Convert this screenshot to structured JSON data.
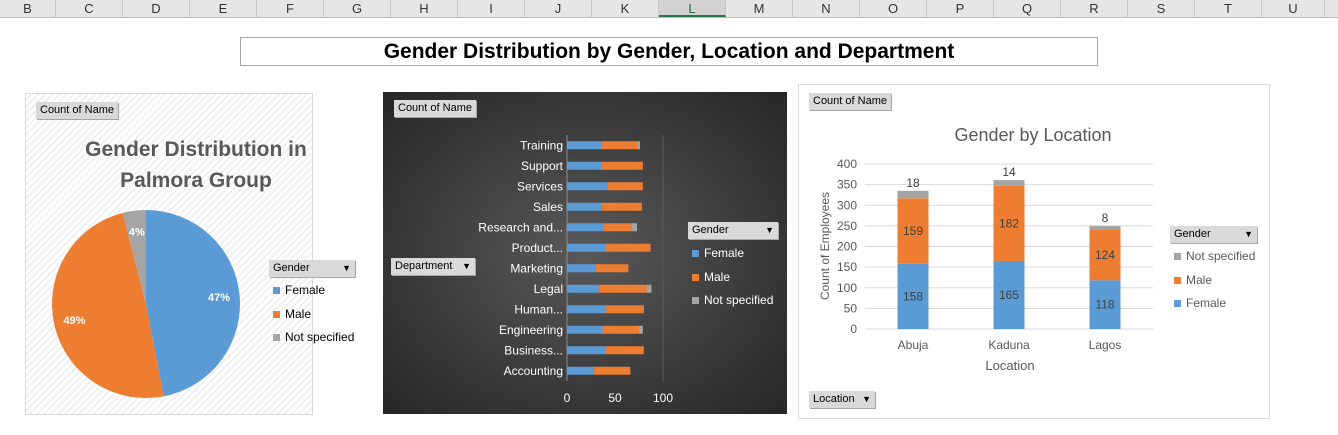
{
  "columns": [
    {
      "label": "B",
      "w": 56
    },
    {
      "label": "C",
      "w": 67
    },
    {
      "label": "D",
      "w": 67
    },
    {
      "label": "E",
      "w": 67
    },
    {
      "label": "F",
      "w": 67
    },
    {
      "label": "G",
      "w": 67
    },
    {
      "label": "H",
      "w": 67
    },
    {
      "label": "I",
      "w": 67
    },
    {
      "label": "J",
      "w": 67
    },
    {
      "label": "K",
      "w": 67
    },
    {
      "label": "L",
      "w": 67,
      "selected": true
    },
    {
      "label": "M",
      "w": 67
    },
    {
      "label": "N",
      "w": 67
    },
    {
      "label": "O",
      "w": 67
    },
    {
      "label": "P",
      "w": 67
    },
    {
      "label": "Q",
      "w": 67
    },
    {
      "label": "R",
      "w": 67
    },
    {
      "label": "S",
      "w": 67
    },
    {
      "label": "T",
      "w": 67
    },
    {
      "label": "U",
      "w": 63
    }
  ],
  "page_title": "Gender Distribution by Gender, Location and Department",
  "colors": {
    "female": "#5b9bd5",
    "male": "#ed7d31",
    "not_specified": "#a5a5a5",
    "dark_bg": "#404040"
  },
  "pie_panel": {
    "field_button": "Count of Name",
    "legend_title": "Gender",
    "legend": [
      "Female",
      "Male",
      "Not specified"
    ]
  },
  "bar_panel": {
    "field_button": "Count of Name",
    "axis_button": "Department",
    "legend_title": "Gender",
    "legend": [
      "Female",
      "Male",
      "Not specified"
    ]
  },
  "col_panel": {
    "field_button": "Count of Name",
    "axis_button": "Location",
    "legend_title": "Gender",
    "legend": [
      "Not specified",
      "Male",
      "Female"
    ]
  },
  "chart_data": [
    {
      "type": "pie",
      "title": "Gender Distribution in Palmora Group",
      "categories": [
        "Female",
        "Male",
        "Not specified"
      ],
      "values": [
        47,
        49,
        4
      ],
      "labels": [
        "47%",
        "49%",
        "4%"
      ],
      "legend_position": "right"
    },
    {
      "type": "bar",
      "orientation": "horizontal",
      "stacked": true,
      "categories": [
        "Accounting",
        "Business...",
        "Engineering",
        "Human...",
        "Legal",
        "Marketing",
        "Product...",
        "Research and...",
        "Sales",
        "Services",
        "Support",
        "Training"
      ],
      "series": [
        {
          "name": "Female",
          "values": [
            28,
            40,
            37,
            40,
            33,
            30,
            40,
            38,
            36,
            42,
            36,
            36
          ]
        },
        {
          "name": "Male",
          "values": [
            38,
            40,
            38,
            39,
            50,
            34,
            47,
            29,
            42,
            37,
            43,
            37
          ]
        },
        {
          "name": "Not specified",
          "values": [
            0,
            0,
            4,
            1,
            5,
            0,
            0,
            6,
            0,
            0,
            0,
            3
          ]
        }
      ],
      "xlim": [
        0,
        100
      ],
      "xticks": [
        0,
        50,
        100
      ],
      "legend_position": "right"
    },
    {
      "type": "bar",
      "orientation": "vertical",
      "stacked": true,
      "title": "Gender by Location",
      "xlabel": "Location",
      "ylabel": "Count of Employees",
      "categories": [
        "Abuja",
        "Kaduna",
        "Lagos"
      ],
      "series": [
        {
          "name": "Female",
          "values": [
            158,
            165,
            118
          ]
        },
        {
          "name": "Male",
          "values": [
            159,
            182,
            124
          ]
        },
        {
          "name": "Not specified",
          "values": [
            18,
            14,
            8
          ]
        }
      ],
      "ylim": [
        0,
        400
      ],
      "yticks": [
        0,
        50,
        100,
        150,
        200,
        250,
        300,
        350,
        400
      ],
      "grid": true,
      "legend_position": "right"
    }
  ]
}
